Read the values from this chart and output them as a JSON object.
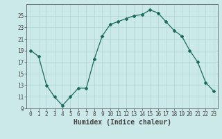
{
  "x": [
    0,
    1,
    2,
    3,
    4,
    5,
    6,
    7,
    8,
    9,
    10,
    11,
    12,
    13,
    14,
    15,
    16,
    17,
    18,
    19,
    20,
    21,
    22,
    23
  ],
  "y": [
    19,
    18,
    13,
    11,
    9.5,
    11,
    12.5,
    12.5,
    17.5,
    21.5,
    23.5,
    24,
    24.5,
    25,
    25.2,
    26,
    25.5,
    24,
    22.5,
    21.5,
    19,
    17,
    13.5,
    12
  ],
  "xlabel": "Humidex (Indice chaleur)",
  "ylabel": "",
  "xlim": [
    -0.5,
    23.5
  ],
  "ylim": [
    9,
    27
  ],
  "yticks": [
    9,
    11,
    13,
    15,
    17,
    19,
    21,
    23,
    25
  ],
  "xticks": [
    0,
    1,
    2,
    3,
    4,
    5,
    6,
    7,
    8,
    9,
    10,
    11,
    12,
    13,
    14,
    15,
    16,
    17,
    18,
    19,
    20,
    21,
    22,
    23
  ],
  "line_color": "#1a6b5a",
  "marker": "D",
  "marker_size": 2.0,
  "bg_color": "#cce9e9",
  "grid_color": "#afd4d4",
  "axis_color": "#444444",
  "tick_fontsize": 5.5,
  "xlabel_fontsize": 7.0
}
